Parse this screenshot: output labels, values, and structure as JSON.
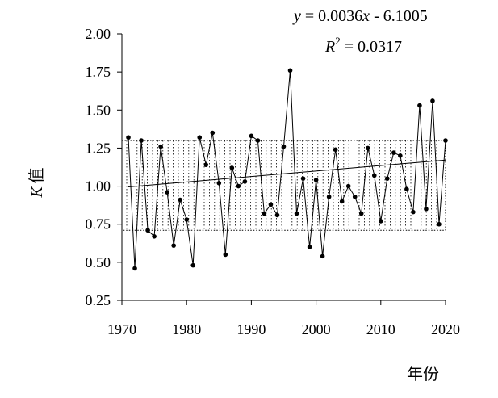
{
  "chart_data": {
    "type": "line",
    "xlabel": "年份",
    "ylabel": "K 值",
    "ylabel_italic_part": "K",
    "ylabel_rest": "值",
    "xlim": [
      1970,
      2020
    ],
    "ylim": [
      0.25,
      2.0
    ],
    "x_ticks": [
      1970,
      1980,
      1990,
      2000,
      2010,
      2020
    ],
    "y_ticks": [
      0.25,
      0.5,
      0.75,
      1.0,
      1.25,
      1.5,
      1.75,
      2.0
    ],
    "y_tick_labels": [
      "0.25",
      "0.50",
      "0.75",
      "1.00",
      "1.25",
      "1.50",
      "1.75",
      "2.00"
    ],
    "x_tick_labels": [
      "1970",
      "1980",
      "1990",
      "2000",
      "2010",
      "2020"
    ],
    "band": {
      "low": 0.71,
      "high": 1.3
    },
    "series": [
      {
        "x": [
          1971,
          1972,
          1973,
          1974,
          1975,
          1976,
          1977,
          1978,
          1979,
          1980,
          1981,
          1982,
          1983,
          1984,
          1985,
          1986,
          1987,
          1988,
          1989,
          1990,
          1991,
          1992,
          1993,
          1994,
          1995,
          1996,
          1997,
          1998,
          1999,
          2000,
          2001,
          2002,
          2003,
          2004,
          2005,
          2006,
          2007,
          2008,
          2009,
          2010,
          2011,
          2012,
          2013,
          2014,
          2015,
          2016,
          2017,
          2018,
          2019,
          2020
        ],
        "values": [
          1.32,
          0.46,
          1.3,
          0.71,
          0.67,
          1.26,
          0.96,
          0.61,
          0.91,
          0.78,
          0.48,
          1.32,
          1.14,
          1.35,
          1.02,
          0.55,
          1.12,
          1.0,
          1.03,
          1.33,
          1.3,
          0.82,
          0.88,
          0.81,
          1.26,
          1.76,
          0.82,
          1.05,
          0.6,
          1.04,
          0.54,
          0.93,
          1.24,
          0.9,
          1.0,
          0.93,
          0.82,
          1.25,
          1.07,
          0.77,
          1.05,
          1.22,
          1.2,
          0.98,
          0.83,
          1.53,
          0.85,
          1.56,
          0.75,
          1.3
        ],
        "marker": "circle",
        "color": "#000000"
      }
    ],
    "trendline": {
      "slope": 0.0036,
      "intercept": -6.1005,
      "x_range": [
        1971,
        2020
      ]
    },
    "equation_text": {
      "y_var": "y",
      "y_equals": " = 0.0036",
      "x_var": "x",
      "y_rest": " - 6.1005",
      "r_var": "R",
      "r_exp": "2",
      "r_rest": " = 0.0317"
    }
  }
}
